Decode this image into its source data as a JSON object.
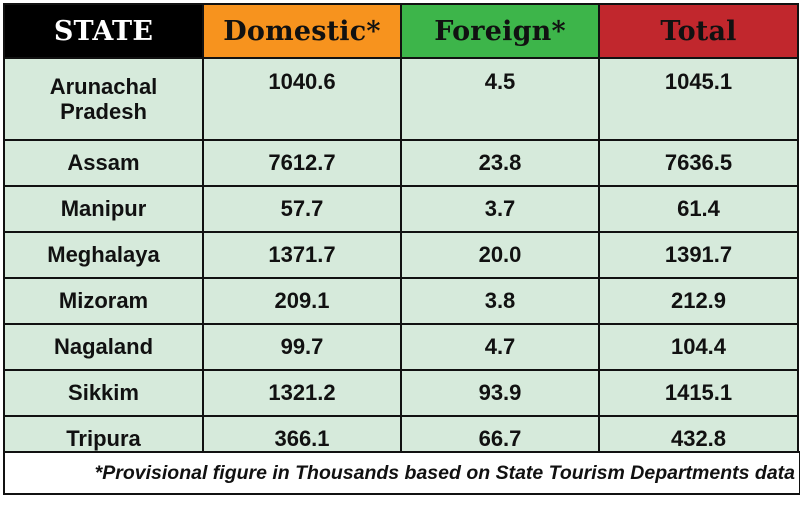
{
  "chart_data": {
    "type": "table",
    "columns": [
      {
        "label": "STATE",
        "color": "#000000"
      },
      {
        "label": "Domestic*",
        "color": "#f7931e"
      },
      {
        "label": "Foreign*",
        "color": "#3db54a"
      },
      {
        "label": "Total",
        "color": "#c1272d"
      }
    ],
    "rows": [
      {
        "state": "Arunachal Pradesh",
        "domestic": "1040.6",
        "foreign": "4.5",
        "total": "1045.1"
      },
      {
        "state": "Assam",
        "domestic": "7612.7",
        "foreign": "23.8",
        "total": "7636.5"
      },
      {
        "state": "Manipur",
        "domestic": "57.7",
        "foreign": "3.7",
        "total": "61.4"
      },
      {
        "state": "Meghalaya",
        "domestic": "1371.7",
        "foreign": "20.0",
        "total": "1391.7"
      },
      {
        "state": "Mizoram",
        "domestic": "209.1",
        "foreign": "3.8",
        "total": "212.9"
      },
      {
        "state": "Nagaland",
        "domestic": "99.7",
        "foreign": "4.7",
        "total": "104.4"
      },
      {
        "state": "Sikkim",
        "domestic": "1321.2",
        "foreign": "93.9",
        "total": "1415.1"
      },
      {
        "state": "Tripura",
        "domestic": "366.1",
        "foreign": "66.7",
        "total": "432.8"
      }
    ],
    "footnote": "*Provisional figure in Thousands based on State Tourism Departments data",
    "cell_background": "#d6eadb"
  }
}
